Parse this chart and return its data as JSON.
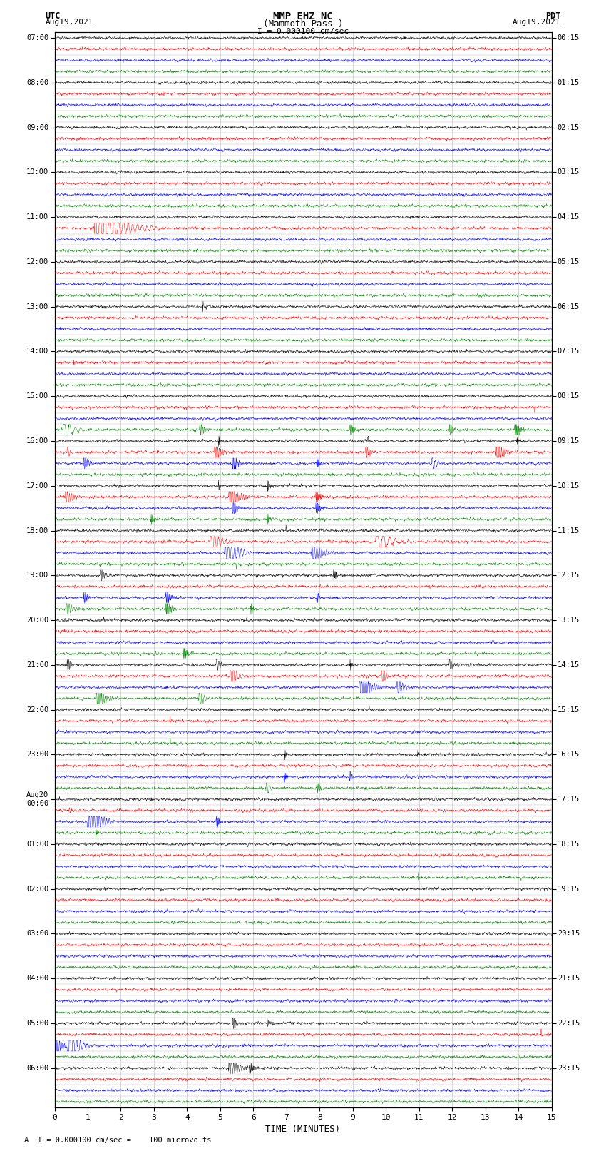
{
  "title_line1": "MMP EHZ NC",
  "title_line2": "(Mammoth Pass )",
  "scale_text": "I = 0.000100 cm/sec",
  "footer_text": "A  I = 0.000100 cm/sec =    100 microvolts",
  "left_label": "UTC",
  "left_date": "Aug19,2021",
  "right_label": "PDT",
  "right_date": "Aug19,2021",
  "xlabel": "TIME (MINUTES)",
  "xmin": 0,
  "xmax": 15,
  "colors": [
    "black",
    "red",
    "blue",
    "green"
  ],
  "utc_hour_labels": [
    "07:00",
    "08:00",
    "09:00",
    "10:00",
    "11:00",
    "12:00",
    "13:00",
    "14:00",
    "15:00",
    "16:00",
    "17:00",
    "18:00",
    "19:00",
    "20:00",
    "21:00",
    "22:00",
    "23:00",
    "Aug20\n00:00",
    "01:00",
    "02:00",
    "03:00",
    "04:00",
    "05:00",
    "06:00"
  ],
  "pdt_hour_labels": [
    "00:15",
    "01:15",
    "02:15",
    "03:15",
    "04:15",
    "05:15",
    "06:15",
    "07:15",
    "08:15",
    "09:15",
    "10:15",
    "11:15",
    "12:15",
    "13:15",
    "14:15",
    "15:15",
    "16:15",
    "17:15",
    "18:15",
    "19:15",
    "20:15",
    "21:15",
    "22:15",
    "23:15"
  ],
  "n_hours": 24,
  "traces_per_hour": 4,
  "n_points": 1800,
  "figsize": [
    8.5,
    16.13
  ],
  "dpi": 100,
  "bg_color": "white",
  "grid_color": "#aaaaaa",
  "seed": 12345
}
